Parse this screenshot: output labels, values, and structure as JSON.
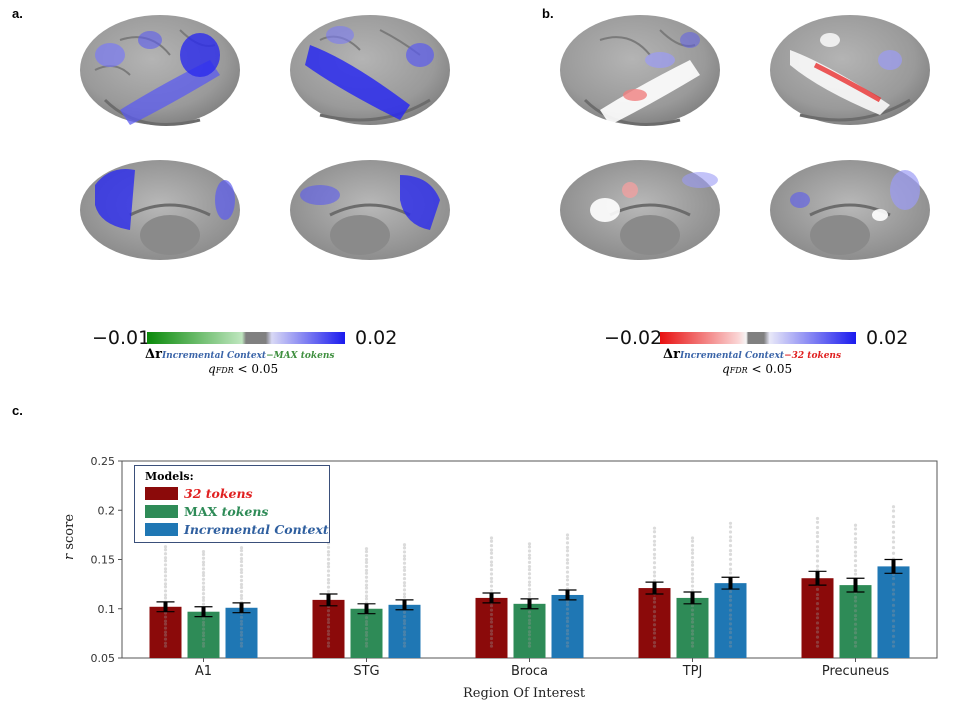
{
  "panels": {
    "a_label": "a.",
    "b_label": "b.",
    "c_label": "c."
  },
  "colorbar_a": {
    "min_label": "−0.01",
    "max_label": "0.02",
    "delta": "Δr",
    "subscript_part1": "Incremental Context",
    "subscript_part2": "−MAX tokens",
    "q_symbol": "q",
    "q_sub": "FDR",
    "q_rest": " < 0.05",
    "colors": {
      "neg": "#0a8a0a",
      "neutral": "#808080",
      "pos": "#1a1aee"
    }
  },
  "colorbar_b": {
    "min_label": "−0.02",
    "max_label": "0.02",
    "delta": "Δr",
    "subscript_part1": "Incremental Context",
    "subscript_part2": "−32 tokens",
    "q_symbol": "q",
    "q_sub": "FDR",
    "q_rest": " < 0.05",
    "colors": {
      "neg": "#e81010",
      "neutral": "#808080",
      "pos": "#1a1aee"
    }
  },
  "chart_data": {
    "type": "bar",
    "categories": [
      "A1",
      "STG",
      "Broca",
      "TPJ",
      "Precuneus"
    ],
    "series": [
      {
        "name": "32 tokens",
        "color": "#8b0a0a",
        "values": [
          0.102,
          0.109,
          0.111,
          0.121,
          0.131
        ],
        "errors": [
          0.005,
          0.006,
          0.005,
          0.006,
          0.007
        ]
      },
      {
        "name": "MAX tokens",
        "color": "#2e8b57",
        "values": [
          0.097,
          0.1,
          0.105,
          0.111,
          0.124
        ],
        "errors": [
          0.005,
          0.005,
          0.005,
          0.006,
          0.007
        ]
      },
      {
        "name": "Incremental Context",
        "color": "#1f77b4",
        "values": [
          0.101,
          0.104,
          0.114,
          0.126,
          0.143
        ],
        "errors": [
          0.005,
          0.005,
          0.005,
          0.006,
          0.007
        ]
      }
    ],
    "ylabel": "r score",
    "ylabel_italic": "r",
    "ylabel_rest": " score",
    "xlabel": "Region Of Interest",
    "ylim": [
      0.05,
      0.25
    ],
    "yticks": [
      "0.05",
      "0.1",
      "0.15",
      "0.2",
      "0.25"
    ],
    "grid": false,
    "legend": {
      "title": "Models:",
      "placement": "top-left",
      "entries": [
        {
          "label": "32 tokens",
          "color": "#8b0a0a",
          "text_color": "#e02020"
        },
        {
          "label_part1": "MAX ",
          "label_part2": "tokens",
          "color": "#2e8b57",
          "text_color": "#2e8b57"
        },
        {
          "label": "Incremental Context",
          "color": "#1f77b4",
          "text_color": "#2f5f9f"
        }
      ]
    }
  }
}
